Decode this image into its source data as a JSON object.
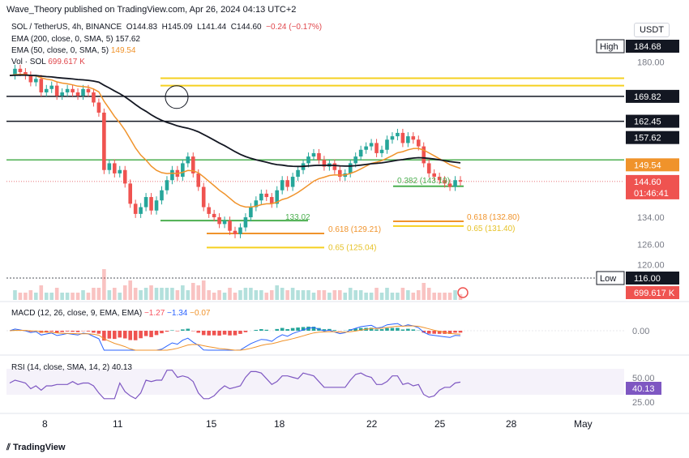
{
  "header": {
    "publish_line": "Wave_Theory published on TradingView.com, Apr 26, 2024 04:13 UTC+2"
  },
  "symbol": {
    "name": "SOL / TetherUS, 4h, BINANCE",
    "o_label": "O",
    "o": "144.83",
    "h_label": "H",
    "h": "145.09",
    "l_label": "L",
    "l": "141.44",
    "c_label": "C",
    "c": "144.60",
    "change": "−0.24 (−0.17%)"
  },
  "currency": "USDT",
  "indicators": {
    "ema200": {
      "label": "EMA (200, close, 0, SMA, 5)",
      "value": "157.62",
      "color": "#131722"
    },
    "ema50": {
      "label": "EMA (50, close, 0, SMA, 5)",
      "value": "149.54",
      "color": "#f0932b"
    },
    "vol": {
      "label": "Vol · SOL",
      "value": "699.617 K"
    }
  },
  "price_axis": {
    "ticks": [
      "180.00",
      "134.00",
      "126.00",
      "120.00"
    ]
  },
  "price_tags": [
    {
      "label": "High",
      "value": "184.68",
      "style": "dark"
    },
    {
      "value": "169.82",
      "style": "dark"
    },
    {
      "value": "162.45",
      "style": "dark"
    },
    {
      "value": "157.62",
      "style": "dark"
    },
    {
      "value": "149.54",
      "style": "orange"
    },
    {
      "value": "144.60",
      "sub": "01:46:41",
      "style": "red"
    },
    {
      "label": "Low",
      "value": "116.00",
      "style": "dark"
    },
    {
      "value": "699.617 K",
      "style": "red"
    }
  ],
  "fib_labels": [
    {
      "text": "0.382 (143.19)",
      "color": "#4caf50"
    },
    {
      "text": "0.618 (132.80)",
      "color": "#f0932b"
    },
    {
      "text": "0.65 (131.40)",
      "color": "#e6c229"
    },
    {
      "text": "0.618 (129.21)",
      "color": "#f0932b"
    },
    {
      "text": "0.65 (125.04)",
      "color": "#e6c229"
    },
    {
      "text": "133.02",
      "color": "#4caf50"
    }
  ],
  "macd": {
    "label": "MACD (12, 26, close, 9, EMA, EMA)",
    "v1": "−1.27",
    "v2": "−1.34",
    "v3": "−0.07",
    "axis": "0.00"
  },
  "rsi": {
    "label": "RSI (14, close, SMA, 14, 2)",
    "value": "40.13",
    "axis_top": "50.00",
    "axis_bottom": "25.00"
  },
  "time_axis": [
    "8",
    "11",
    "15",
    "18",
    "22",
    "25",
    "28",
    "May"
  ],
  "footer": "TradingView",
  "chart_data": {
    "type": "candlestick",
    "symbol": "SOL/USDT",
    "timeframe": "4h",
    "horizontal_levels": [
      169.82,
      162.45,
      149.54,
      144.6,
      184.68,
      116.0
    ],
    "ema200_last": 157.62,
    "ema50_last": 149.54,
    "close_path": [
      176,
      178,
      177,
      176,
      174,
      175,
      171,
      172,
      173,
      170,
      171,
      172,
      171,
      170,
      172,
      171,
      168,
      165,
      148,
      150,
      147,
      148,
      144,
      138,
      135,
      137,
      140,
      136,
      139,
      142,
      145,
      148,
      146,
      150,
      152,
      147,
      143,
      137,
      135,
      134,
      132,
      133,
      130,
      129,
      131,
      134,
      137,
      139,
      141,
      140,
      138,
      142,
      145,
      143,
      146,
      148,
      150,
      152,
      153,
      151,
      149,
      150,
      148,
      146,
      147,
      150,
      152,
      154,
      155,
      156,
      153,
      154,
      157,
      158,
      159,
      156,
      158,
      157,
      155,
      150,
      147,
      146,
      145,
      144,
      143,
      145,
      144.6
    ]
  }
}
